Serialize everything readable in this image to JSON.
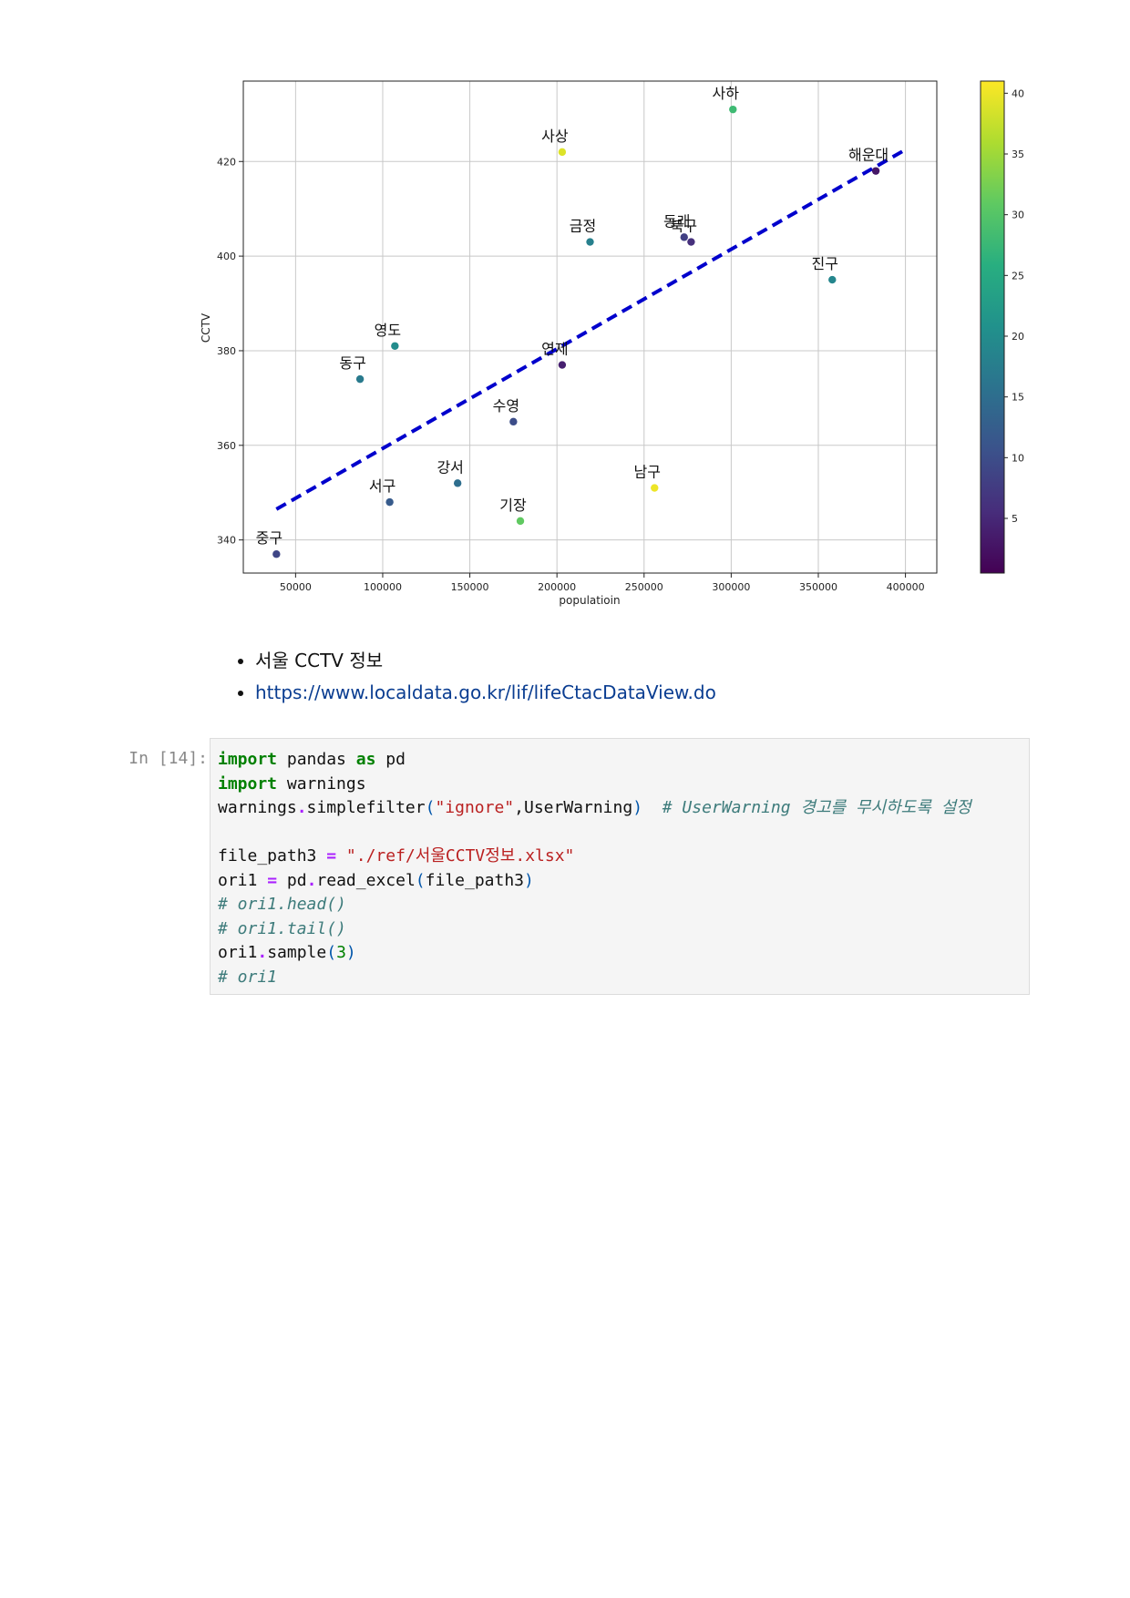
{
  "chart_data": {
    "type": "scatter",
    "xlabel": "populatioin",
    "ylabel": "CCTV",
    "xlim": [
      20000,
      418000
    ],
    "ylim": [
      333,
      437
    ],
    "xticks": [
      50000,
      100000,
      150000,
      200000,
      250000,
      300000,
      350000,
      400000
    ],
    "yticks": [
      340,
      360,
      380,
      400,
      420
    ],
    "grid": true,
    "points": [
      {
        "label": "사하",
        "x": 301000,
        "y": 431,
        "c": 28
      },
      {
        "label": "사상",
        "x": 203000,
        "y": 422,
        "c": 39
      },
      {
        "label": "해운대",
        "x": 383000,
        "y": 418,
        "c": 3
      },
      {
        "label": "금정",
        "x": 219000,
        "y": 403,
        "c": 18
      },
      {
        "label": "동래",
        "x": 273000,
        "y": 404,
        "c": 8
      },
      {
        "label": "북구",
        "x": 277000,
        "y": 403,
        "c": 6
      },
      {
        "label": "진구",
        "x": 358000,
        "y": 395,
        "c": 19
      },
      {
        "label": "영도",
        "x": 107000,
        "y": 381,
        "c": 20
      },
      {
        "label": "동구",
        "x": 87000,
        "y": 374,
        "c": 17
      },
      {
        "label": "연제",
        "x": 203000,
        "y": 377,
        "c": 4
      },
      {
        "label": "수영",
        "x": 175000,
        "y": 365,
        "c": 10
      },
      {
        "label": "강서",
        "x": 143000,
        "y": 352,
        "c": 15
      },
      {
        "label": "남구",
        "x": 256000,
        "y": 351,
        "c": 40
      },
      {
        "label": "서구",
        "x": 104000,
        "y": 348,
        "c": 12
      },
      {
        "label": "기장",
        "x": 179000,
        "y": 344,
        "c": 31
      },
      {
        "label": "중구",
        "x": 39000,
        "y": 337,
        "c": 9
      }
    ],
    "trendline": {
      "x": [
        39000,
        400000
      ],
      "y": [
        346.5,
        422.5
      ],
      "color": "#0000cc",
      "style": "dashed"
    },
    "colorbar": {
      "min": 0.5,
      "max": 41,
      "ticks": [
        5,
        10,
        15,
        20,
        25,
        30,
        35,
        40
      ],
      "colormap": "viridis"
    }
  },
  "links": {
    "item1": "서울 CCTV 정보",
    "item2": "https://www.localdata.go.kr/lif/lifeCtacDataView.do"
  },
  "cell": {
    "prompt": "In [14]:",
    "code": {
      "l1_import": "import",
      "l1_mod": "pandas",
      "l1_as": "as",
      "l1_alias": "pd",
      "l2_import": "import",
      "l2_mod": "warnings",
      "l3_obj": "warnings",
      "l3_dot": ".",
      "l3_fn": "simplefilter",
      "l3_open": "(",
      "l3_str": "\"ignore\"",
      "l3_arg": ",UserWarning",
      "l3_close": ")",
      "l3_comment": "# UserWarning 경고를 무시하도록 설정",
      "l5_var": "file_path3",
      "l5_eq": "=",
      "l5_str": "\"./ref/서울CCTV정보.xlsx\"",
      "l6_var": "ori1",
      "l6_eq": "=",
      "l6_obj": "pd",
      "l6_dot": ".",
      "l6_fn": "read_excel",
      "l6_open": "(",
      "l6_arg": "file_path3",
      "l6_close": ")",
      "l7_comment": "# ori1.head()",
      "l8_comment": "# ori1.tail()",
      "l9_obj": "ori1",
      "l9_dot": ".",
      "l9_fn": "sample",
      "l9_open": "(",
      "l9_num": "3",
      "l9_close": ")",
      "l10_comment": "# ori1"
    }
  }
}
